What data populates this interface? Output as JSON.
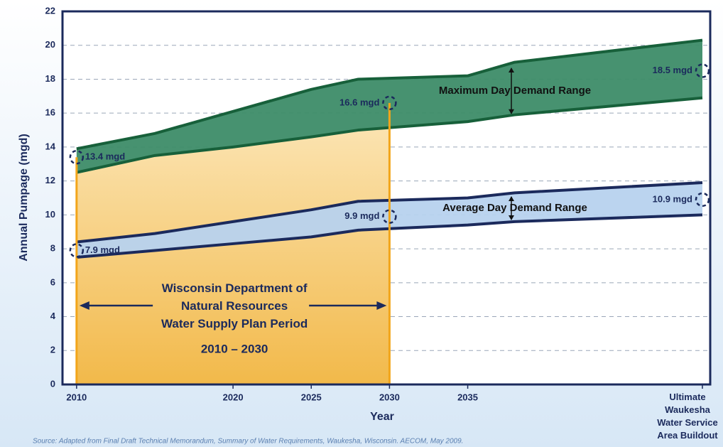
{
  "chart_data": {
    "type": "area_band",
    "x_label": "Year",
    "y_label": "Annual Pumpage (mgd)",
    "source": "Source: Adapted from Final Draft Technical Memorandum, Summary of Water Requirements, Waukesha, Wisconsin. AECOM, May 2009.",
    "x": [
      2010,
      2015,
      2020,
      2025,
      2028,
      2035,
      2038,
      2050
    ],
    "series": [
      {
        "name": "Maximum Day Demand Range",
        "color": "#3d8c68",
        "line_color": "#17603a",
        "low": [
          12.5,
          13.5,
          14.0,
          14.6,
          15.0,
          15.5,
          15.9,
          16.9
        ],
        "high": [
          13.9,
          14.8,
          16.1,
          17.4,
          18.0,
          18.2,
          19.0,
          20.3
        ]
      },
      {
        "name": "Average Day Demand Range",
        "color": "#b7d2ee",
        "line_color": "#1b2a5c",
        "low": [
          7.5,
          7.9,
          8.3,
          8.7,
          9.1,
          9.4,
          9.6,
          10.0
        ],
        "high": [
          8.4,
          8.9,
          9.6,
          10.3,
          10.8,
          11.0,
          11.3,
          11.9
        ]
      }
    ],
    "annotations": [
      {
        "text": "13.4 mgd",
        "x": 2010,
        "y": 13.4
      },
      {
        "text": "16.6 mgd",
        "x": 2030,
        "y": 16.6
      },
      {
        "text": "18.5 mgd",
        "x": 2050,
        "y": 18.5
      },
      {
        "text": "7.9 mgd",
        "x": 2010,
        "y": 7.9
      },
      {
        "text": "9.9 mgd",
        "x": 2030,
        "y": 9.9
      },
      {
        "text": "10.9 mgd",
        "x": 2050,
        "y": 10.9
      }
    ],
    "period": {
      "start": 2010,
      "end": 2030,
      "color": "#f6c768",
      "label": "Wisconsin Department of\nNatural Resources\nWater Supply Plan Period",
      "range_label": "2010 – 2030"
    },
    "xlim": [
      2009.1,
      2050.5
    ],
    "xticks": [
      2010,
      2020,
      2025,
      2030,
      2035,
      {
        "value": 2050,
        "label": "Ultimate\nWaukesha\nWater Service\nArea Buildout"
      }
    ],
    "ylim": [
      0,
      22
    ],
    "yticks": [
      0,
      2,
      4,
      6,
      8,
      10,
      12,
      14,
      16,
      18,
      20,
      22
    ],
    "grid": true
  }
}
